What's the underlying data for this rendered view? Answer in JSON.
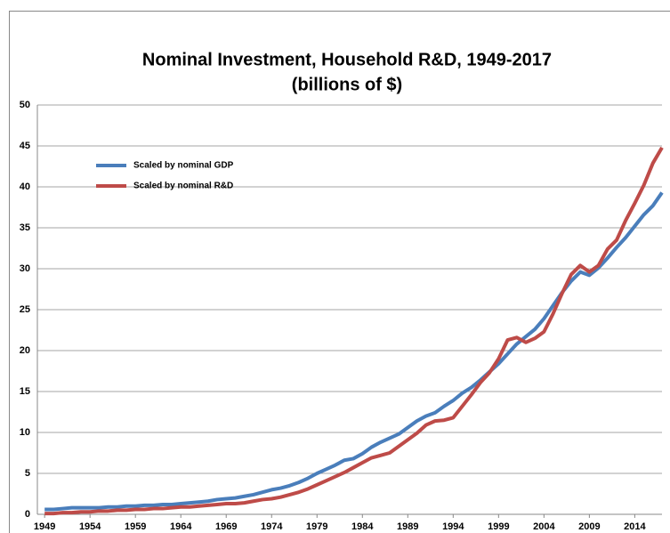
{
  "chart_data": {
    "type": "line",
    "title": "Nominal Investment, Household R&D, 1949-2017",
    "subtitle": "(billions of $)",
    "x": [
      1949,
      1950,
      1951,
      1952,
      1953,
      1954,
      1955,
      1956,
      1957,
      1958,
      1959,
      1960,
      1961,
      1962,
      1963,
      1964,
      1965,
      1966,
      1967,
      1968,
      1969,
      1970,
      1971,
      1972,
      1973,
      1974,
      1975,
      1976,
      1977,
      1978,
      1979,
      1980,
      1981,
      1982,
      1983,
      1984,
      1985,
      1986,
      1987,
      1988,
      1989,
      1990,
      1991,
      1992,
      1993,
      1994,
      1995,
      1996,
      1997,
      1998,
      1999,
      2000,
      2001,
      2002,
      2003,
      2004,
      2005,
      2006,
      2007,
      2008,
      2009,
      2010,
      2011,
      2012,
      2013,
      2014,
      2015,
      2016,
      2017
    ],
    "series": [
      {
        "name": "Scaled by nominal GDP",
        "color": "#4a7ebb",
        "values": [
          0.6,
          0.6,
          0.7,
          0.8,
          0.8,
          0.8,
          0.8,
          0.9,
          0.9,
          1.0,
          1.0,
          1.1,
          1.1,
          1.2,
          1.2,
          1.3,
          1.4,
          1.5,
          1.6,
          1.8,
          1.9,
          2.0,
          2.2,
          2.4,
          2.7,
          3.0,
          3.2,
          3.5,
          3.9,
          4.4,
          5.0,
          5.5,
          6.0,
          6.6,
          6.8,
          7.4,
          8.2,
          8.8,
          9.3,
          9.8,
          10.6,
          11.4,
          12.0,
          12.4,
          13.2,
          13.9,
          14.8,
          15.5,
          16.4,
          17.4,
          18.4,
          19.6,
          20.8,
          21.7,
          22.6,
          23.9,
          25.5,
          27.1,
          28.5,
          29.6,
          29.2,
          30.1,
          31.3,
          32.6,
          33.8,
          35.2,
          36.6,
          37.7,
          39.3
        ]
      },
      {
        "name": "Scaled by nominal R&D",
        "color": "#be4b48",
        "values": [
          0.1,
          0.1,
          0.2,
          0.2,
          0.3,
          0.3,
          0.4,
          0.4,
          0.5,
          0.5,
          0.6,
          0.6,
          0.7,
          0.7,
          0.8,
          0.9,
          0.9,
          1.0,
          1.1,
          1.2,
          1.3,
          1.3,
          1.4,
          1.6,
          1.8,
          1.9,
          2.1,
          2.4,
          2.7,
          3.1,
          3.6,
          4.1,
          4.6,
          5.1,
          5.7,
          6.3,
          6.9,
          7.2,
          7.5,
          8.3,
          9.1,
          9.9,
          10.9,
          11.4,
          11.5,
          11.8,
          13.2,
          14.6,
          16.1,
          17.3,
          19.0,
          21.3,
          21.6,
          21.0,
          21.5,
          22.3,
          24.5,
          27.0,
          29.3,
          30.4,
          29.6,
          30.4,
          32.4,
          33.5,
          35.9,
          38.0,
          40.2,
          42.9,
          44.8
        ]
      }
    ],
    "xlim": [
      1948.2,
      2017
    ],
    "xticks": [
      1949,
      1954,
      1959,
      1964,
      1969,
      1974,
      1979,
      1984,
      1989,
      1994,
      1999,
      2004,
      2009,
      2014
    ],
    "ylim": [
      0,
      50
    ],
    "yticks": [
      0,
      5,
      10,
      15,
      20,
      25,
      30,
      35,
      40,
      45,
      50
    ],
    "grid": true,
    "legend": "upper-left"
  }
}
